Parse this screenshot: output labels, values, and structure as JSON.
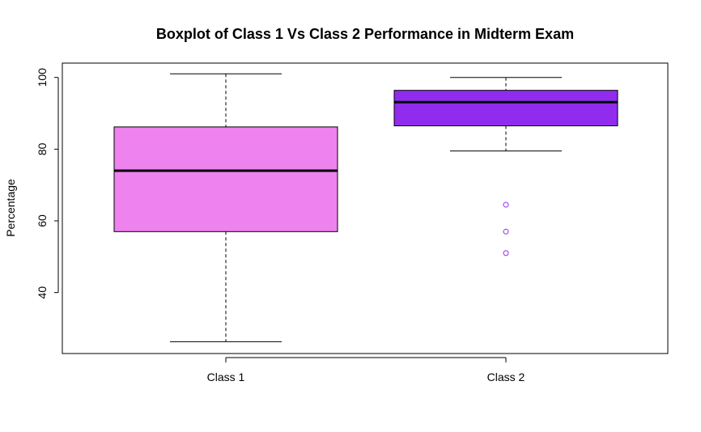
{
  "chart_data": {
    "type": "boxplot",
    "title": "Boxplot of Class 1 Vs Class 2 Performance in Midterm Exam",
    "xlabel": "",
    "ylabel": "Percentage",
    "categories": [
      "Class 1",
      "Class 2"
    ],
    "yticks": [
      40,
      60,
      80,
      100
    ],
    "ylim": [
      23,
      104
    ],
    "grid": false,
    "series": [
      {
        "category": "Class 1",
        "min": 26.3,
        "q1": 57,
        "median": 74,
        "q3": 86.2,
        "max": 101,
        "outliers": [],
        "fill": "#EE82EE"
      },
      {
        "category": "Class 2",
        "min": 79.5,
        "q1": 86.5,
        "median": 93.1,
        "q3": 96.4,
        "max": 100,
        "outliers": [
          64.5,
          57,
          51
        ],
        "fill": "#912CEE"
      }
    ]
  }
}
